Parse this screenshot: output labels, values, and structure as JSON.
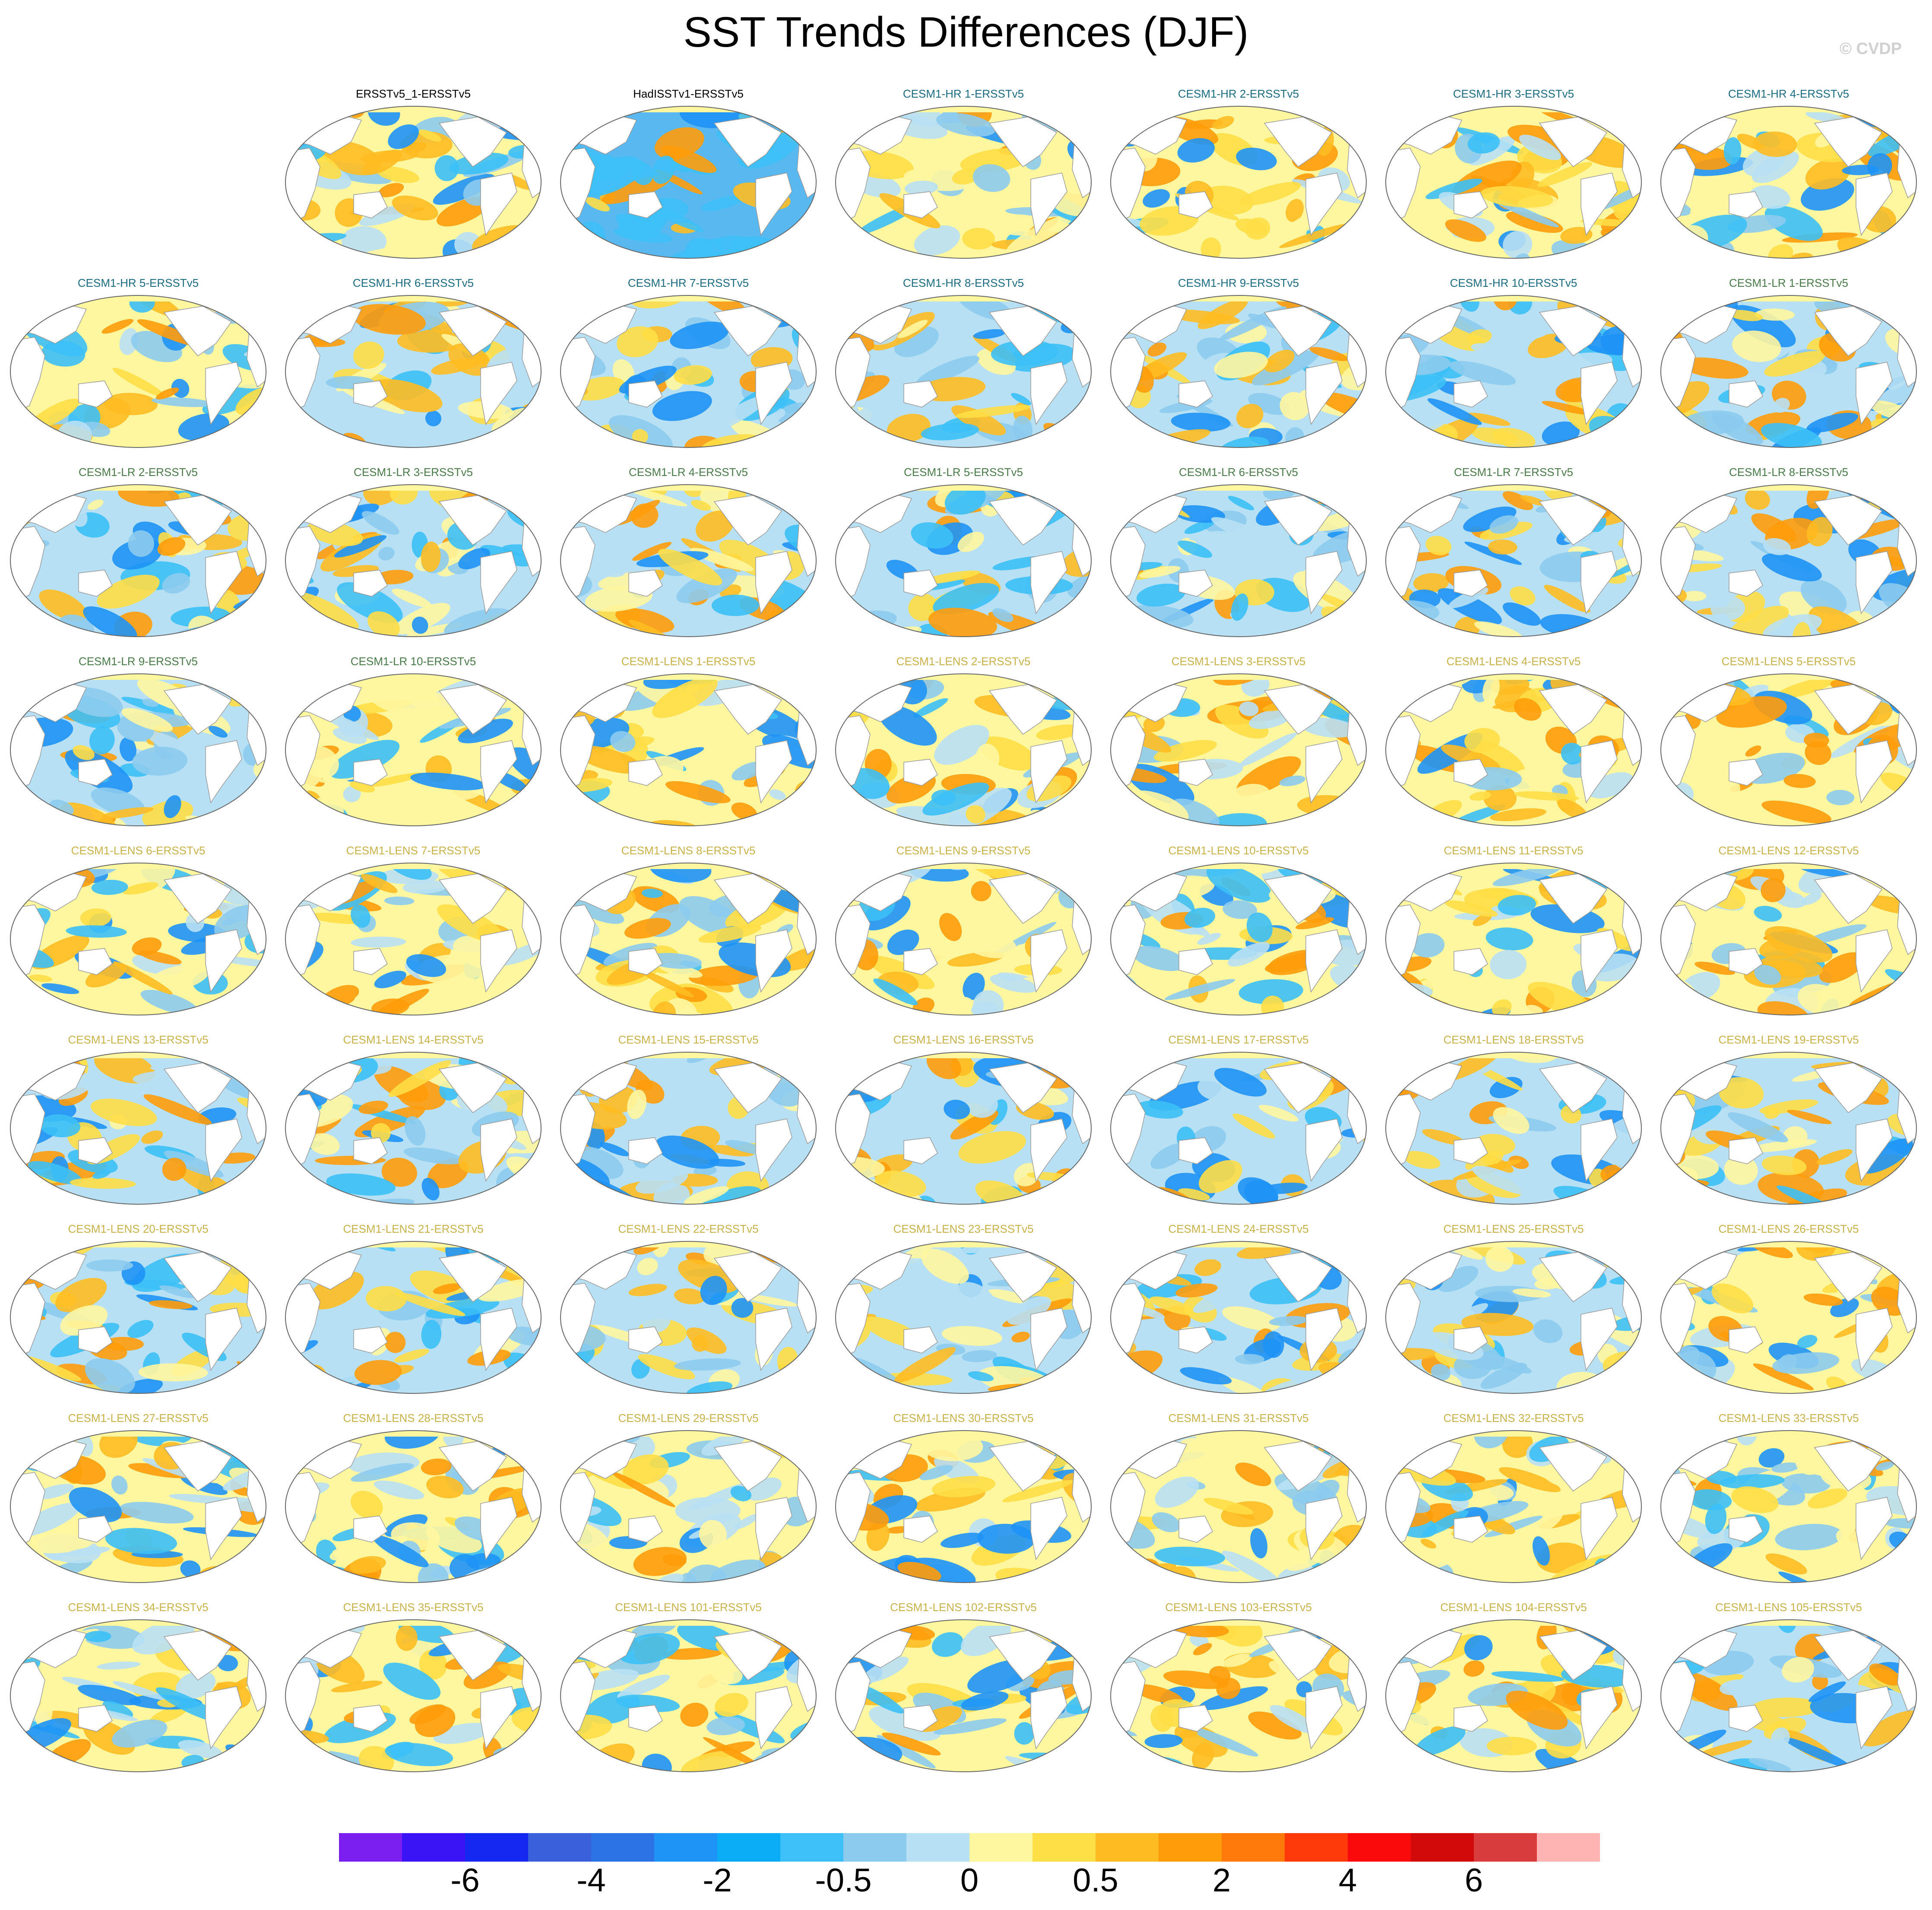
{
  "header": {
    "title": "SST Trends Differences (DJF)",
    "credit": "© CVDP"
  },
  "colors": {
    "obs_title": "#000000",
    "hr_title": "#1c6c80",
    "lr_title": "#4a7a4a",
    "lens_title": "#c8b24a",
    "land": "#ffffff",
    "coast": "#9a9a9a"
  },
  "chart_data": {
    "type": "heatmap",
    "title": "SST Trends Differences (DJF)",
    "panels": [
      {
        "row": 0,
        "col": 1,
        "label": "ERSSTv5_1-ERSSTv5",
        "group": "obs"
      },
      {
        "row": 0,
        "col": 2,
        "label": "HadISSTv1-ERSSTv5",
        "group": "obs"
      },
      {
        "row": 0,
        "col": 3,
        "label": "CESM1-HR 1-ERSSTv5",
        "group": "hr"
      },
      {
        "row": 0,
        "col": 4,
        "label": "CESM1-HR 2-ERSSTv5",
        "group": "hr"
      },
      {
        "row": 0,
        "col": 5,
        "label": "CESM1-HR 3-ERSSTv5",
        "group": "hr"
      },
      {
        "row": 0,
        "col": 6,
        "label": "CESM1-HR 4-ERSSTv5",
        "group": "hr"
      },
      {
        "row": 1,
        "col": 0,
        "label": "CESM1-HR 5-ERSSTv5",
        "group": "hr"
      },
      {
        "row": 1,
        "col": 1,
        "label": "CESM1-HR 6-ERSSTv5",
        "group": "hr"
      },
      {
        "row": 1,
        "col": 2,
        "label": "CESM1-HR 7-ERSSTv5",
        "group": "hr"
      },
      {
        "row": 1,
        "col": 3,
        "label": "CESM1-HR 8-ERSSTv5",
        "group": "hr"
      },
      {
        "row": 1,
        "col": 4,
        "label": "CESM1-HR 9-ERSSTv5",
        "group": "hr"
      },
      {
        "row": 1,
        "col": 5,
        "label": "CESM1-HR 10-ERSSTv5",
        "group": "hr"
      },
      {
        "row": 1,
        "col": 6,
        "label": "CESM1-LR 1-ERSSTv5",
        "group": "lr"
      },
      {
        "row": 2,
        "col": 0,
        "label": "CESM1-LR 2-ERSSTv5",
        "group": "lr"
      },
      {
        "row": 2,
        "col": 1,
        "label": "CESM1-LR 3-ERSSTv5",
        "group": "lr"
      },
      {
        "row": 2,
        "col": 2,
        "label": "CESM1-LR 4-ERSSTv5",
        "group": "lr"
      },
      {
        "row": 2,
        "col": 3,
        "label": "CESM1-LR 5-ERSSTv5",
        "group": "lr"
      },
      {
        "row": 2,
        "col": 4,
        "label": "CESM1-LR 6-ERSSTv5",
        "group": "lr"
      },
      {
        "row": 2,
        "col": 5,
        "label": "CESM1-LR 7-ERSSTv5",
        "group": "lr"
      },
      {
        "row": 2,
        "col": 6,
        "label": "CESM1-LR 8-ERSSTv5",
        "group": "lr"
      },
      {
        "row": 3,
        "col": 0,
        "label": "CESM1-LR 9-ERSSTv5",
        "group": "lr"
      },
      {
        "row": 3,
        "col": 1,
        "label": "CESM1-LR 10-ERSSTv5",
        "group": "lr"
      },
      {
        "row": 3,
        "col": 2,
        "label": "CESM1-LENS 1-ERSSTv5",
        "group": "lens"
      },
      {
        "row": 3,
        "col": 3,
        "label": "CESM1-LENS 2-ERSSTv5",
        "group": "lens"
      },
      {
        "row": 3,
        "col": 4,
        "label": "CESM1-LENS 3-ERSSTv5",
        "group": "lens"
      },
      {
        "row": 3,
        "col": 5,
        "label": "CESM1-LENS 4-ERSSTv5",
        "group": "lens"
      },
      {
        "row": 3,
        "col": 6,
        "label": "CESM1-LENS 5-ERSSTv5",
        "group": "lens"
      },
      {
        "row": 4,
        "col": 0,
        "label": "CESM1-LENS 6-ERSSTv5",
        "group": "lens"
      },
      {
        "row": 4,
        "col": 1,
        "label": "CESM1-LENS 7-ERSSTv5",
        "group": "lens"
      },
      {
        "row": 4,
        "col": 2,
        "label": "CESM1-LENS 8-ERSSTv5",
        "group": "lens"
      },
      {
        "row": 4,
        "col": 3,
        "label": "CESM1-LENS 9-ERSSTv5",
        "group": "lens"
      },
      {
        "row": 4,
        "col": 4,
        "label": "CESM1-LENS 10-ERSSTv5",
        "group": "lens"
      },
      {
        "row": 4,
        "col": 5,
        "label": "CESM1-LENS 11-ERSSTv5",
        "group": "lens"
      },
      {
        "row": 4,
        "col": 6,
        "label": "CESM1-LENS 12-ERSSTv5",
        "group": "lens"
      },
      {
        "row": 5,
        "col": 0,
        "label": "CESM1-LENS 13-ERSSTv5",
        "group": "lens"
      },
      {
        "row": 5,
        "col": 1,
        "label": "CESM1-LENS 14-ERSSTv5",
        "group": "lens"
      },
      {
        "row": 5,
        "col": 2,
        "label": "CESM1-LENS 15-ERSSTv5",
        "group": "lens"
      },
      {
        "row": 5,
        "col": 3,
        "label": "CESM1-LENS 16-ERSSTv5",
        "group": "lens"
      },
      {
        "row": 5,
        "col": 4,
        "label": "CESM1-LENS 17-ERSSTv5",
        "group": "lens"
      },
      {
        "row": 5,
        "col": 5,
        "label": "CESM1-LENS 18-ERSSTv5",
        "group": "lens"
      },
      {
        "row": 5,
        "col": 6,
        "label": "CESM1-LENS 19-ERSSTv5",
        "group": "lens"
      },
      {
        "row": 6,
        "col": 0,
        "label": "CESM1-LENS 20-ERSSTv5",
        "group": "lens"
      },
      {
        "row": 6,
        "col": 1,
        "label": "CESM1-LENS 21-ERSSTv5",
        "group": "lens"
      },
      {
        "row": 6,
        "col": 2,
        "label": "CESM1-LENS 22-ERSSTv5",
        "group": "lens"
      },
      {
        "row": 6,
        "col": 3,
        "label": "CESM1-LENS 23-ERSSTv5",
        "group": "lens"
      },
      {
        "row": 6,
        "col": 4,
        "label": "CESM1-LENS 24-ERSSTv5",
        "group": "lens"
      },
      {
        "row": 6,
        "col": 5,
        "label": "CESM1-LENS 25-ERSSTv5",
        "group": "lens"
      },
      {
        "row": 6,
        "col": 6,
        "label": "CESM1-LENS 26-ERSSTv5",
        "group": "lens"
      },
      {
        "row": 7,
        "col": 0,
        "label": "CESM1-LENS 27-ERSSTv5",
        "group": "lens"
      },
      {
        "row": 7,
        "col": 1,
        "label": "CESM1-LENS 28-ERSSTv5",
        "group": "lens"
      },
      {
        "row": 7,
        "col": 2,
        "label": "CESM1-LENS 29-ERSSTv5",
        "group": "lens"
      },
      {
        "row": 7,
        "col": 3,
        "label": "CESM1-LENS 30-ERSSTv5",
        "group": "lens"
      },
      {
        "row": 7,
        "col": 4,
        "label": "CESM1-LENS 31-ERSSTv5",
        "group": "lens"
      },
      {
        "row": 7,
        "col": 5,
        "label": "CESM1-LENS 32-ERSSTv5",
        "group": "lens"
      },
      {
        "row": 7,
        "col": 6,
        "label": "CESM1-LENS 33-ERSSTv5",
        "group": "lens"
      },
      {
        "row": 8,
        "col": 0,
        "label": "CESM1-LENS 34-ERSSTv5",
        "group": "lens"
      },
      {
        "row": 8,
        "col": 1,
        "label": "CESM1-LENS 35-ERSSTv5",
        "group": "lens"
      },
      {
        "row": 8,
        "col": 2,
        "label": "CESM1-LENS 101-ERSSTv5",
        "group": "lens"
      },
      {
        "row": 8,
        "col": 3,
        "label": "CESM1-LENS 102-ERSSTv5",
        "group": "lens"
      },
      {
        "row": 8,
        "col": 4,
        "label": "CESM1-LENS 103-ERSSTv5",
        "group": "lens"
      },
      {
        "row": 8,
        "col": 5,
        "label": "CESM1-LENS 104-ERSSTv5",
        "group": "lens"
      },
      {
        "row": 8,
        "col": 6,
        "label": "CESM1-LENS 105-ERSSTv5",
        "group": "lens"
      }
    ],
    "colorbar": {
      "colors": [
        "#7a1ff0",
        "#3a14f5",
        "#1428f0",
        "#3a60dc",
        "#2c74e6",
        "#1e94f6",
        "#0aacf6",
        "#3cc0f6",
        "#8ccbee",
        "#b8e0f4",
        "#fff6a0",
        "#ffde46",
        "#ffbc22",
        "#ff9c0a",
        "#ff7a0a",
        "#ff3a0a",
        "#fa0a0a",
        "#d20a0a",
        "#d83c3c",
        "#ffb4b4"
      ],
      "labels": [
        "-6",
        "-4",
        "-2",
        "-0.5",
        "0",
        "0.5",
        "2",
        "4",
        "6"
      ],
      "label_boundaries": [
        2,
        4,
        6,
        8,
        10,
        12,
        14,
        16,
        18
      ]
    }
  }
}
